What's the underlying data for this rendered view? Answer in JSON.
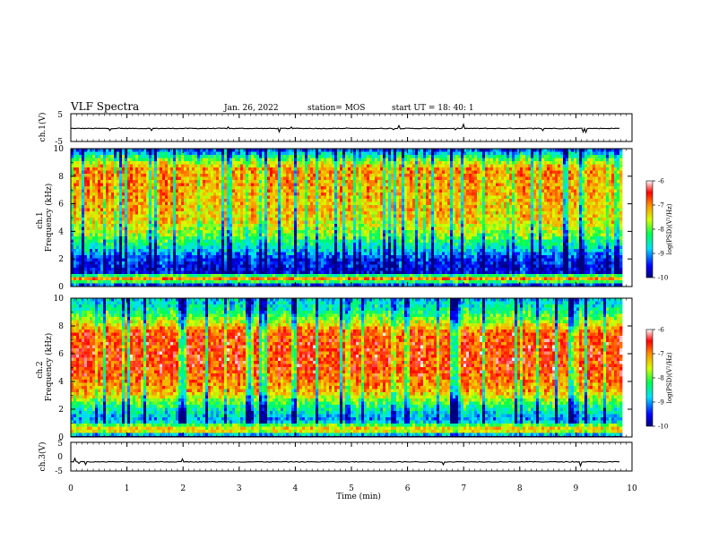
{
  "header": {
    "title": "VLF Spectra",
    "date": "Jan. 26, 2022",
    "station": "station= MOS",
    "start": "start UT =  18: 40: 1"
  },
  "chart_data": [
    {
      "type": "line",
      "id": "ch1-waveform",
      "ylabel": "ch.1(V)",
      "ylim": [
        -5,
        5
      ],
      "yticks": [
        5,
        -5
      ],
      "x": [
        0,
        10
      ],
      "series": [
        {
          "values": [
            -0.3,
            -0.3
          ]
        }
      ]
    },
    {
      "type": "heatmap",
      "id": "ch1-spectrogram",
      "ylabel_top": "ch.1",
      "ylabel": "Frequency (kHz)",
      "ylim": [
        0,
        10
      ],
      "yticks": [
        0,
        2,
        4,
        6,
        8,
        10
      ],
      "xlim": [
        0,
        10
      ],
      "colorbar": {
        "label": "log(PSD)(V²/Hz)",
        "range": [
          -10,
          -6
        ],
        "ticks": [
          -6,
          -7,
          -8,
          -9,
          -10
        ]
      },
      "band_profile": [
        {
          "f": 0.0,
          "v": -9.8
        },
        {
          "f": 0.6,
          "v": -6.8
        },
        {
          "f": 1.0,
          "v": -9.6
        },
        {
          "f": 2.0,
          "v": -9.4
        },
        {
          "f": 2.8,
          "v": -8.6
        },
        {
          "f": 3.8,
          "v": -7.8
        },
        {
          "f": 5.0,
          "v": -7.3
        },
        {
          "f": 7.0,
          "v": -7.1
        },
        {
          "f": 8.5,
          "v": -7.0
        },
        {
          "f": 9.3,
          "v": -8.0
        },
        {
          "f": 10.0,
          "v": -9.4
        }
      ]
    },
    {
      "type": "heatmap",
      "id": "ch2-spectrogram",
      "ylabel_top": "ch.2",
      "ylabel": "Frequency (kHz)",
      "ylim": [
        0,
        10
      ],
      "yticks": [
        0,
        2,
        4,
        6,
        8,
        10
      ],
      "xlim": [
        0,
        10
      ],
      "colorbar": {
        "label": "log(PSD)(V²/Hz)",
        "range": [
          -10,
          -6
        ],
        "ticks": [
          -6,
          -7,
          -8,
          -9,
          -10
        ]
      },
      "band_profile": [
        {
          "f": 0.0,
          "v": -9.8
        },
        {
          "f": 0.5,
          "v": -6.9
        },
        {
          "f": 1.2,
          "v": -9.0
        },
        {
          "f": 2.2,
          "v": -8.3
        },
        {
          "f": 3.2,
          "v": -7.2
        },
        {
          "f": 5.0,
          "v": -6.6
        },
        {
          "f": 7.5,
          "v": -6.7
        },
        {
          "f": 8.3,
          "v": -7.6
        },
        {
          "f": 9.2,
          "v": -8.4
        },
        {
          "f": 10.0,
          "v": -8.8
        }
      ]
    },
    {
      "type": "line",
      "id": "ch3-waveform",
      "ylabel": "ch.3(V)",
      "ylim": [
        -5,
        5
      ],
      "yticks": [
        5,
        0,
        -5
      ],
      "x": [
        0,
        10
      ],
      "series": [
        {
          "values": [
            -1.8,
            -1.8
          ]
        }
      ]
    }
  ],
  "xaxis": {
    "label": "Time (min)",
    "range": [
      0,
      10
    ],
    "ticks": [
      0,
      1,
      2,
      3,
      4,
      5,
      6,
      7,
      8,
      9,
      10
    ]
  },
  "data_end_min": 9.8
}
